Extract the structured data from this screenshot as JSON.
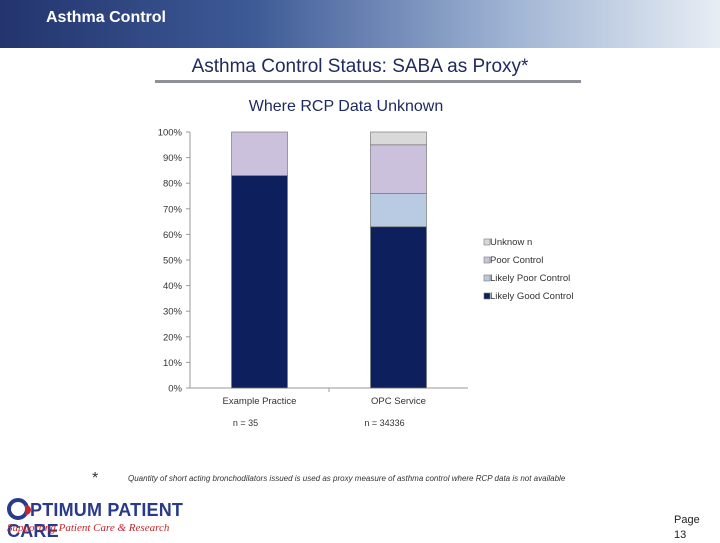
{
  "header": {
    "title": "Asthma Control"
  },
  "main_title": "Asthma Control Status: SABA as Proxy*",
  "chart_data": {
    "type": "bar",
    "stacked": true,
    "title": "Where RCP Data Unknown",
    "categories": [
      "Example Practice",
      "OPC Service"
    ],
    "category_notes": [
      "n = 35",
      "n = 34336"
    ],
    "series": [
      {
        "name": "Likely Good Control",
        "values": [
          83,
          63
        ],
        "color": "#0d1f5c"
      },
      {
        "name": "Likely Poor Control",
        "values": [
          0,
          13
        ],
        "color": "#b8cbe3"
      },
      {
        "name": "Poor Control",
        "values": [
          17,
          19
        ],
        "color": "#cbc1dc"
      },
      {
        "name": "Unknown",
        "values": [
          0,
          5
        ],
        "color": "#d9d9d9"
      }
    ],
    "legend_labels": [
      "Unknow n",
      "Poor Control",
      "Likely Poor Control",
      "Likely Good Control"
    ],
    "legend_colors": [
      "#d9d9d9",
      "#cbc1dc",
      "#b8cbe3",
      "#0d1f5c"
    ],
    "y_ticks": [
      "0%",
      "10%",
      "20%",
      "30%",
      "40%",
      "50%",
      "60%",
      "70%",
      "80%",
      "90%",
      "100%"
    ],
    "ylim": [
      0,
      100
    ],
    "legend_position": "right",
    "grid": false
  },
  "footnote": {
    "marker": "*",
    "text": "Quantity of short acting bronchodilators issued is used as proxy measure of asthma control where RCP data is not available"
  },
  "logo": {
    "top": "PTIMUM PATIENT CARE",
    "bottom": "Supporting Patient Care & Research"
  },
  "page": {
    "label": "Page",
    "number": "13"
  }
}
